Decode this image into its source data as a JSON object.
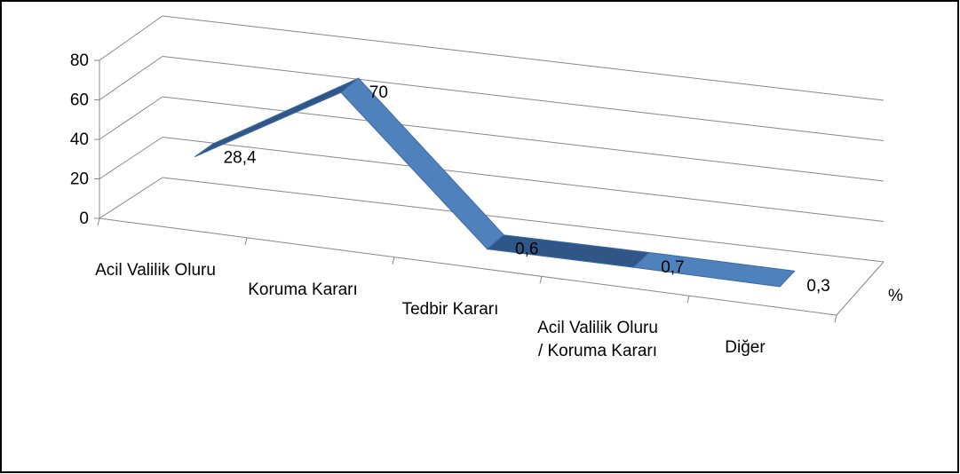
{
  "chart_data": {
    "type": "line3d",
    "categories": [
      "Acil Valilik Oluru",
      "Koruma Kararı",
      "Tedbir Kararı",
      "Acil Valilik Oluru / Koruma Kararı",
      "Diğer"
    ],
    "series": [
      {
        "name": "%",
        "color": "#4f81bd",
        "values": [
          28.4,
          70,
          0.6,
          0.7,
          0.3
        ],
        "value_labels": [
          "28,4",
          "70",
          "0,6",
          "0,7",
          "0,3"
        ]
      }
    ],
    "ylim": [
      0,
      80
    ],
    "yticks": [
      0,
      20,
      40,
      60,
      80
    ],
    "grid": true
  }
}
